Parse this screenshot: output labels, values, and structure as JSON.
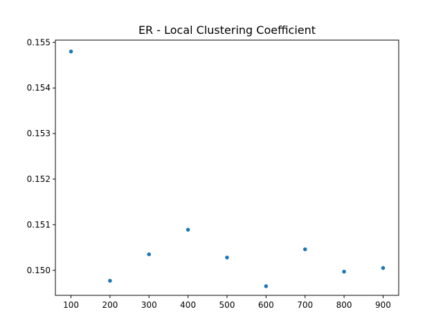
{
  "chart_data": {
    "type": "scatter",
    "title": "ER - Local Clustering Coefficient",
    "xlabel": "",
    "ylabel": "",
    "x": [
      100,
      200,
      300,
      400,
      500,
      600,
      700,
      800,
      900
    ],
    "y": [
      0.1548,
      0.14977,
      0.15035,
      0.15089,
      0.15028,
      0.14965,
      0.15046,
      0.14997,
      0.15005
    ],
    "xlim": [
      60,
      940
    ],
    "ylim": [
      0.14945,
      0.15505
    ],
    "xticks": [
      100,
      200,
      300,
      400,
      500,
      600,
      700,
      800,
      900
    ],
    "xtick_labels": [
      "100",
      "200",
      "300",
      "400",
      "500",
      "600",
      "700",
      "800",
      "900"
    ],
    "yticks": [
      0.15,
      0.151,
      0.152,
      0.153,
      0.154,
      0.155
    ],
    "ytick_labels": [
      "0.150",
      "0.151",
      "0.152",
      "0.153",
      "0.154",
      "0.155"
    ],
    "grid": false,
    "marker_color": "#1f77b4"
  }
}
